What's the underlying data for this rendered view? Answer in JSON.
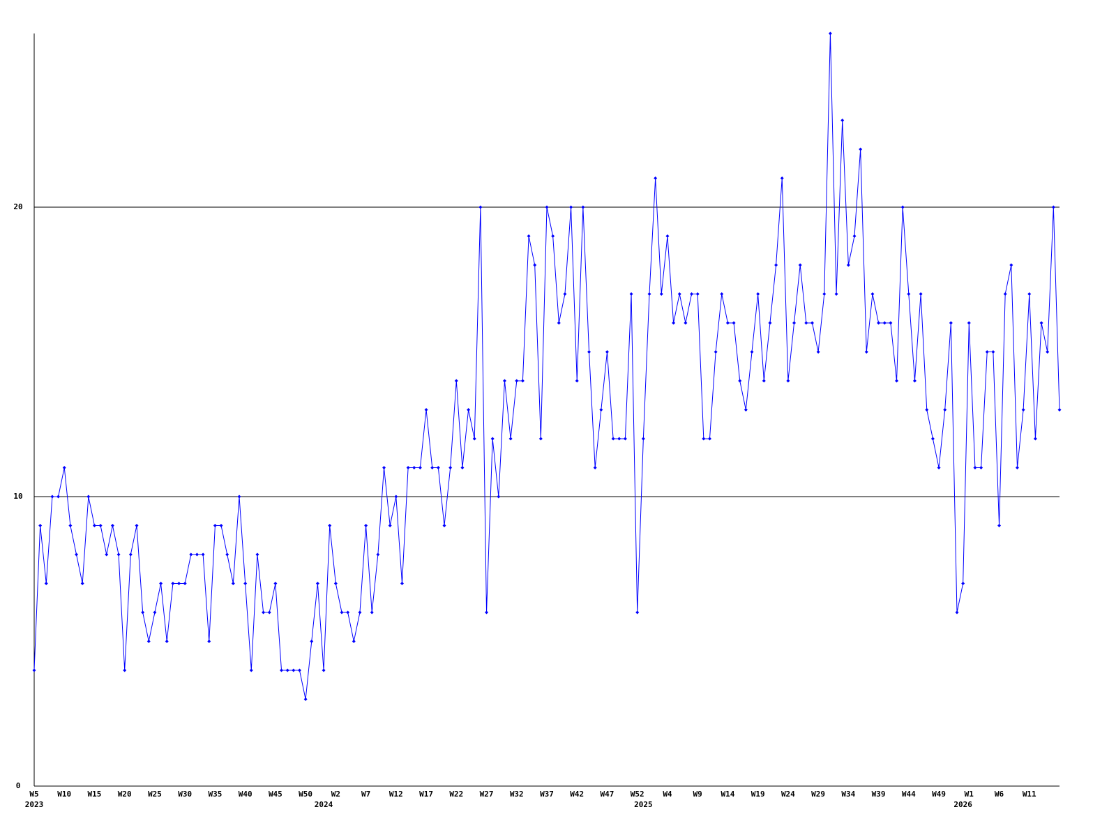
{
  "chart_data": {
    "type": "line",
    "color": "#0000ff",
    "grid": true,
    "ylim": [
      0,
      26
    ],
    "yticks": [
      0,
      10,
      20
    ],
    "categories": [
      "W5",
      null,
      null,
      null,
      null,
      "W10",
      null,
      null,
      null,
      null,
      "W15",
      null,
      null,
      null,
      null,
      "W20",
      null,
      null,
      null,
      null,
      "W25",
      null,
      null,
      null,
      null,
      "W30",
      null,
      null,
      null,
      null,
      "W35",
      null,
      null,
      null,
      null,
      "W40",
      null,
      null,
      null,
      null,
      "W45",
      null,
      null,
      null,
      null,
      "W50",
      null,
      null,
      null,
      null,
      "W2",
      null,
      null,
      null,
      null,
      "W7",
      null,
      null,
      null,
      null,
      "W12",
      null,
      null,
      null,
      null,
      "W17",
      null,
      null,
      null,
      null,
      "W22",
      null,
      null,
      null,
      null,
      "W27",
      null,
      null,
      null,
      null,
      "W32",
      null,
      null,
      null,
      null,
      "W37",
      null,
      null,
      null,
      null,
      "W42",
      null,
      null,
      null,
      null,
      "W47",
      null,
      null,
      null,
      null,
      "W52",
      null,
      null,
      null,
      null,
      "W4",
      null,
      null,
      null,
      null,
      "W9",
      null,
      null,
      null,
      null,
      "W14",
      null,
      null,
      null,
      null,
      "W19",
      null,
      null,
      null,
      null,
      "W24",
      null,
      null,
      null,
      null,
      "W29",
      null,
      null,
      null,
      null,
      "W34",
      null,
      null,
      null,
      null,
      "W39",
      null,
      null,
      null,
      null,
      "W44",
      null,
      null,
      null,
      null,
      "W49",
      null,
      null,
      null,
      null,
      "W1",
      null,
      null,
      null,
      null,
      "W6",
      null,
      null,
      null,
      null,
      "W11",
      null,
      null,
      null,
      null,
      null
    ],
    "x_group_labels": [
      "2023",
      null,
      null,
      null,
      null,
      null,
      null,
      null,
      null,
      null,
      null,
      null,
      null,
      null,
      null,
      null,
      null,
      null,
      null,
      null,
      null,
      null,
      null,
      null,
      null,
      null,
      null,
      null,
      null,
      null,
      null,
      null,
      null,
      null,
      null,
      null,
      null,
      null,
      null,
      null,
      null,
      null,
      null,
      null,
      null,
      null,
      null,
      null,
      "2024",
      null,
      null,
      null,
      null,
      null,
      null,
      null,
      null,
      null,
      null,
      null,
      null,
      null,
      null,
      null,
      null,
      null,
      null,
      null,
      null,
      null,
      null,
      null,
      null,
      null,
      null,
      null,
      null,
      null,
      null,
      null,
      null,
      null,
      null,
      null,
      null,
      null,
      null,
      null,
      null,
      null,
      null,
      null,
      null,
      null,
      null,
      null,
      null,
      null,
      null,
      null,
      null,
      "2025",
      null,
      null,
      null,
      null,
      null,
      null,
      null,
      null,
      null,
      null,
      null,
      null,
      null,
      null,
      null,
      null,
      null,
      null,
      null,
      null,
      null,
      null,
      null,
      null,
      null,
      null,
      null,
      null,
      null,
      null,
      null,
      null,
      null,
      null,
      null,
      null,
      null,
      null,
      null,
      null,
      null,
      null,
      null,
      null,
      null,
      null,
      null,
      null,
      null,
      null,
      null,
      null,
      "2026",
      null,
      null,
      null,
      null,
      null,
      null,
      null,
      null,
      null,
      null,
      null,
      null,
      null,
      null,
      null,
      null
    ],
    "values": [
      4,
      9,
      7,
      10,
      10,
      11,
      9,
      8,
      7,
      10,
      9,
      9,
      8,
      9,
      8,
      4,
      8,
      9,
      6,
      5,
      6,
      7,
      5,
      7,
      7,
      7,
      8,
      8,
      8,
      5,
      9,
      9,
      8,
      7,
      10,
      7,
      4,
      8,
      6,
      6,
      7,
      4,
      4,
      4,
      4,
      3,
      5,
      7,
      4,
      9,
      7,
      6,
      6,
      5,
      6,
      9,
      6,
      8,
      11,
      9,
      10,
      7,
      11,
      11,
      11,
      13,
      11,
      11,
      9,
      11,
      14,
      11,
      13,
      12,
      20,
      6,
      12,
      10,
      14,
      12,
      14,
      14,
      19,
      18,
      12,
      20,
      19,
      16,
      17,
      20,
      14,
      20,
      15,
      11,
      13,
      15,
      12,
      12,
      12,
      17,
      6,
      12,
      17,
      21,
      17,
      19,
      16,
      17,
      16,
      17,
      17,
      12,
      12,
      15,
      17,
      16,
      16,
      14,
      13,
      15,
      17,
      14,
      16,
      18,
      21,
      14,
      16,
      18,
      16,
      16,
      15,
      17,
      26,
      17,
      23,
      18,
      19,
      22,
      15,
      17,
      16,
      16,
      16,
      14,
      20,
      17,
      14,
      17,
      13,
      12,
      11,
      13,
      16,
      6,
      7,
      16,
      11,
      11,
      15,
      15,
      9,
      17,
      18,
      11,
      13,
      17,
      12,
      16,
      15,
      20,
      13
    ]
  }
}
